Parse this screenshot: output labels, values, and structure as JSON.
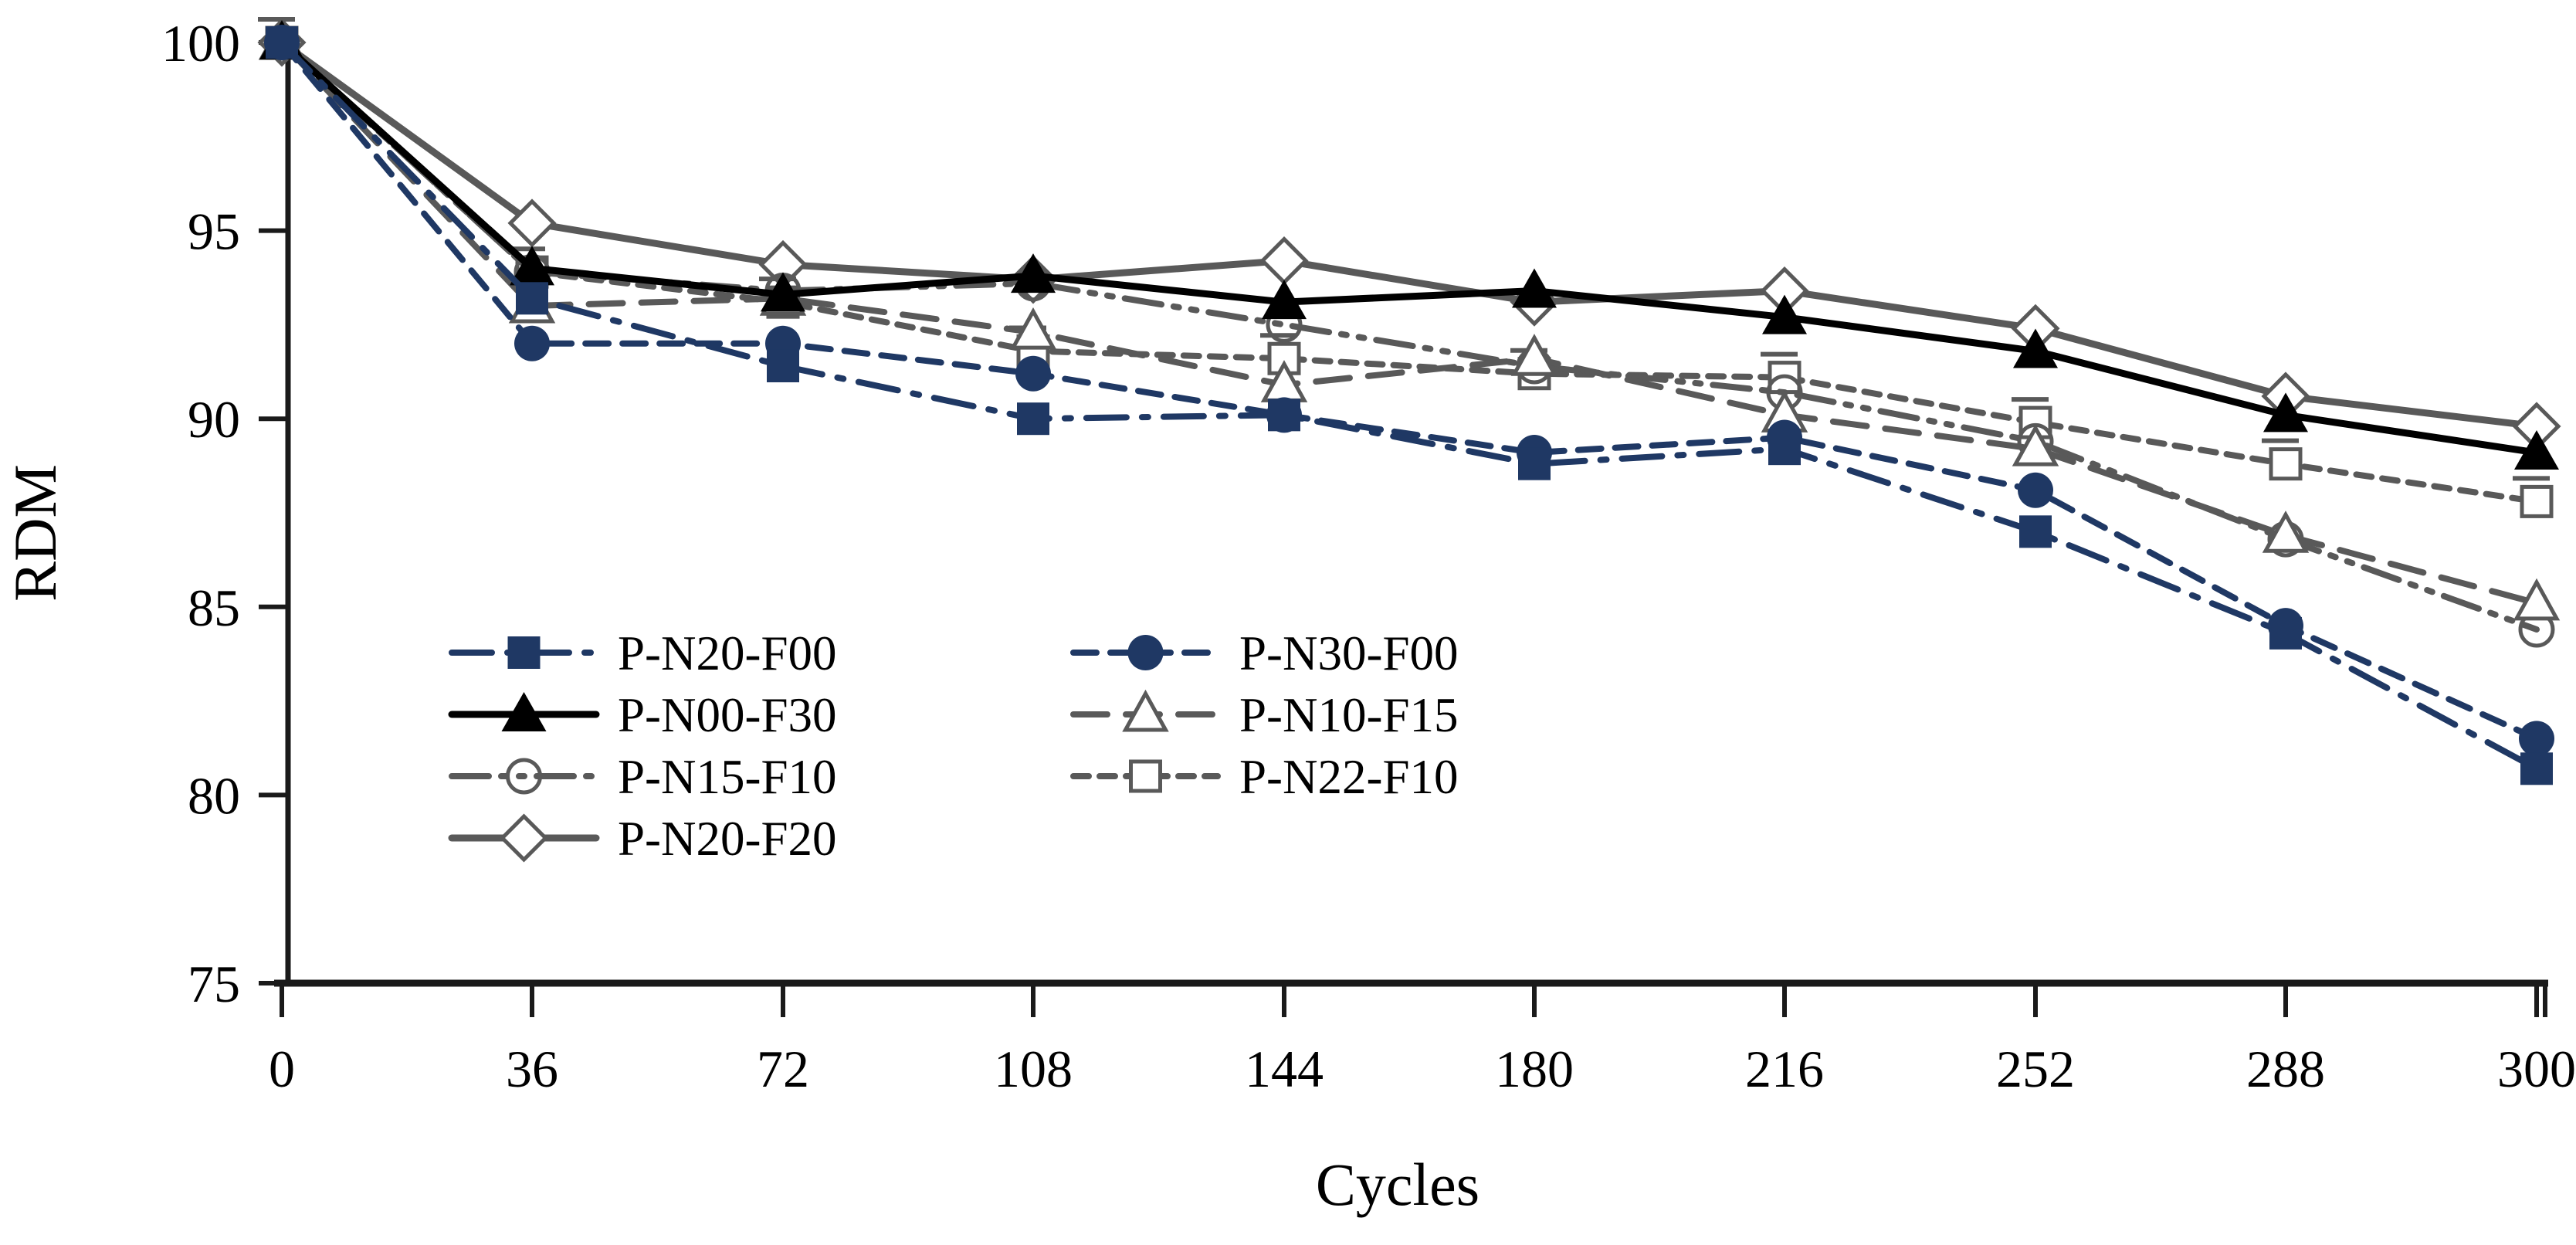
{
  "chart_data": {
    "type": "line",
    "title": "",
    "xlabel": "Cycles",
    "ylabel": "RDM",
    "x_categories": [
      0,
      36,
      72,
      108,
      144,
      180,
      216,
      252,
      288,
      300
    ],
    "ylim": [
      75,
      100
    ],
    "yticks": [
      75,
      80,
      85,
      90,
      95,
      100
    ],
    "grid": false,
    "legend_position": "inside-lower-left",
    "background_color": "#ffffff",
    "axis_color": "#1a1a1a",
    "series": [
      {
        "name": "P-N20-F00",
        "color": "#1f3864",
        "line_style": "dash-dot",
        "marker": "square-filled",
        "values": [
          100,
          93.2,
          91.4,
          90.0,
          90.1,
          88.8,
          89.2,
          87.0,
          84.3,
          80.7
        ]
      },
      {
        "name": "P-N30-F00",
        "color": "#1f3864",
        "line_style": "dashed",
        "marker": "circle-filled",
        "values": [
          100,
          92.0,
          92.0,
          91.2,
          90.1,
          89.1,
          89.5,
          88.1,
          84.5,
          81.5
        ]
      },
      {
        "name": "P-N00-F30",
        "color": "#000000",
        "line_style": "solid",
        "marker": "triangle-filled",
        "values": [
          100,
          94.0,
          93.3,
          93.8,
          93.1,
          93.4,
          92.7,
          91.8,
          90.1,
          89.1
        ]
      },
      {
        "name": "P-N10-F15",
        "color": "#595959",
        "line_style": "dashed-long",
        "marker": "triangle-open",
        "values": [
          100,
          93.0,
          93.2,
          92.3,
          90.9,
          91.6,
          90.1,
          89.2,
          86.9,
          85.1
        ]
      },
      {
        "name": "P-N15-F10",
        "color": "#595959",
        "line_style": "dash-dot-dot",
        "marker": "circle-open",
        "values": [
          100,
          93.9,
          93.4,
          93.6,
          92.5,
          91.4,
          90.7,
          89.4,
          86.8,
          84.4
        ]
      },
      {
        "name": "P-N22-F10",
        "color": "#595959",
        "line_style": "dashed-short",
        "marker": "square-open",
        "values": [
          100,
          93.9,
          93.1,
          91.8,
          91.6,
          91.2,
          91.1,
          89.9,
          88.8,
          87.8
        ]
      },
      {
        "name": "P-N20-F20",
        "color": "#595959",
        "line_style": "solid",
        "marker": "diamond-open",
        "values": [
          100,
          95.2,
          94.1,
          93.7,
          94.2,
          93.1,
          93.4,
          92.4,
          90.6,
          89.8
        ]
      }
    ],
    "legend_rows": [
      [
        "P-N20-F00",
        "P-N30-F00"
      ],
      [
        "P-N00-F30",
        "P-N10-F15"
      ],
      [
        "P-N15-F10",
        "P-N22-F10"
      ],
      [
        "P-N20-F20"
      ]
    ]
  }
}
